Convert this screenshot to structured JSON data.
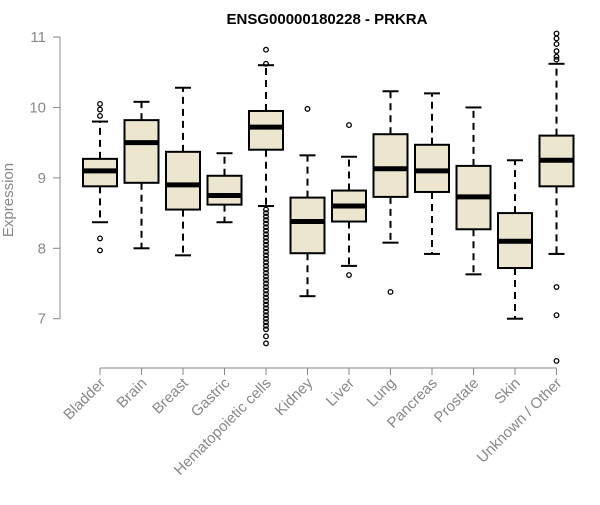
{
  "chart_data": {
    "type": "boxplot",
    "title": "ENSG00000180228 - PRKRA",
    "xlabel": "",
    "ylabel": "Expression",
    "ylim": [
      6.3,
      11.1
    ],
    "yticks": [
      7,
      8,
      9,
      10,
      11
    ],
    "colors": {
      "box_fill": "#EDE6CF",
      "stroke": "#000000",
      "axis": "#888888",
      "title": "#000000"
    },
    "categories": [
      "Bladder",
      "Brain",
      "Breast",
      "Gastric",
      "Hematopoietic cells",
      "Kidney",
      "Liver",
      "Lung",
      "Pancreas",
      "Prostate",
      "Skin",
      "Unknown / Other"
    ],
    "series": [
      {
        "name": "Bladder",
        "q1": 8.88,
        "median": 9.1,
        "q3": 9.27,
        "whisker_low": 8.37,
        "whisker_high": 9.8,
        "outliers": [
          7.97,
          8.14,
          9.88,
          9.97,
          10.05
        ]
      },
      {
        "name": "Brain",
        "q1": 8.93,
        "median": 9.5,
        "q3": 9.82,
        "whisker_low": 8.0,
        "whisker_high": 10.08,
        "outliers": []
      },
      {
        "name": "Breast",
        "q1": 8.55,
        "median": 8.9,
        "q3": 9.37,
        "whisker_low": 7.9,
        "whisker_high": 10.28,
        "outliers": []
      },
      {
        "name": "Gastric",
        "q1": 8.62,
        "median": 8.75,
        "q3": 9.03,
        "whisker_low": 8.37,
        "whisker_high": 9.35,
        "outliers": []
      },
      {
        "name": "Hematopoietic cells",
        "q1": 9.4,
        "median": 9.72,
        "q3": 9.95,
        "whisker_low": 8.6,
        "whisker_high": 10.6,
        "outliers": [
          10.62,
          10.82,
          8.55,
          8.5,
          8.45,
          8.4,
          8.35,
          8.3,
          8.25,
          8.2,
          8.15,
          8.1,
          8.05,
          8.0,
          7.95,
          7.9,
          7.85,
          7.8,
          7.75,
          7.7,
          7.65,
          7.6,
          7.55,
          7.5,
          7.45,
          7.4,
          7.35,
          7.3,
          7.25,
          7.2,
          7.15,
          7.1,
          7.05,
          7.0,
          6.95,
          6.9,
          6.85,
          6.75,
          6.65
        ]
      },
      {
        "name": "Kidney",
        "q1": 7.93,
        "median": 8.38,
        "q3": 8.72,
        "whisker_low": 7.32,
        "whisker_high": 9.32,
        "outliers": [
          9.98
        ]
      },
      {
        "name": "Liver",
        "q1": 8.38,
        "median": 8.6,
        "q3": 8.82,
        "whisker_low": 7.75,
        "whisker_high": 9.3,
        "outliers": [
          7.62,
          9.75
        ]
      },
      {
        "name": "Lung",
        "q1": 8.73,
        "median": 9.13,
        "q3": 9.62,
        "whisker_low": 8.08,
        "whisker_high": 10.23,
        "outliers": [
          7.38
        ]
      },
      {
        "name": "Pancreas",
        "q1": 8.8,
        "median": 9.1,
        "q3": 9.47,
        "whisker_low": 7.92,
        "whisker_high": 10.2,
        "outliers": []
      },
      {
        "name": "Prostate",
        "q1": 8.27,
        "median": 8.73,
        "q3": 9.17,
        "whisker_low": 7.63,
        "whisker_high": 10.0,
        "outliers": []
      },
      {
        "name": "Skin",
        "q1": 7.72,
        "median": 8.1,
        "q3": 8.5,
        "whisker_low": 7.0,
        "whisker_high": 9.25,
        "outliers": []
      },
      {
        "name": "Unknown / Other",
        "q1": 8.88,
        "median": 9.25,
        "q3": 9.6,
        "whisker_low": 7.92,
        "whisker_high": 10.62,
        "outliers": [
          11.05,
          10.98,
          10.9,
          10.8,
          10.72,
          10.68,
          7.45,
          7.05,
          6.4
        ]
      }
    ]
  }
}
